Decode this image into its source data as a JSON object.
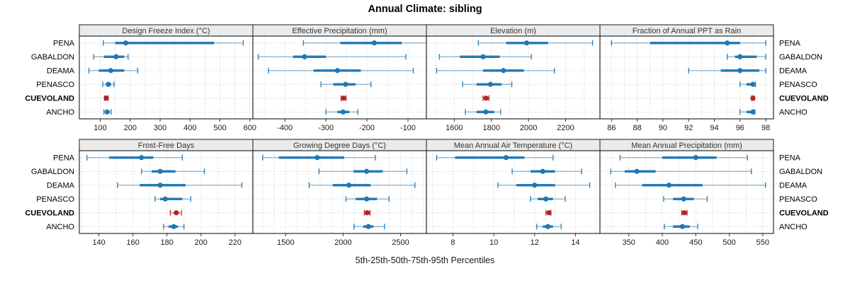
{
  "title": "Annual Climate: sibling",
  "footer_label": "5th-25th-50th-75th-95th Percentiles",
  "chart_data": {
    "type": "percentile-dot-whisker",
    "title": "Annual Climate: sibling",
    "xlabel": "5th-25th-50th-75th-95th Percentiles",
    "percentiles": [
      5,
      25,
      50,
      75,
      95
    ],
    "legend_position": "none",
    "grid": "dotted",
    "sites": [
      {
        "name": "PENA",
        "highlight": false
      },
      {
        "name": "GABALDON",
        "highlight": false
      },
      {
        "name": "DEAMA",
        "highlight": false
      },
      {
        "name": "PENASCO",
        "highlight": false
      },
      {
        "name": "CUEVOLAND",
        "highlight": true
      },
      {
        "name": "ANCHO",
        "highlight": false
      }
    ],
    "panels": [
      {
        "title": "Design Freeze Index (°C)",
        "xlim": [
          30,
          610
        ],
        "ticks": [
          100,
          200,
          300,
          400,
          500,
          600
        ],
        "minor": 50,
        "values": [
          [
            110,
            150,
            185,
            480,
            578
          ],
          [
            78,
            112,
            153,
            180,
            193
          ],
          [
            62,
            95,
            135,
            180,
            225
          ],
          [
            108,
            118,
            127,
            136,
            146
          ],
          [
            114,
            117,
            120,
            123,
            126
          ],
          [
            112,
            118,
            123,
            129,
            136
          ]
        ]
      },
      {
        "title": "Effective Precipitation (mm)",
        "xlim": [
          -478,
          -55
        ],
        "ticks": [
          -400,
          -300,
          -200,
          -100
        ],
        "minor": 50,
        "values": [
          [
            -355,
            -265,
            -182,
            -115,
            -35
          ],
          [
            -465,
            -380,
            -352,
            -300,
            -105
          ],
          [
            -440,
            -330,
            -272,
            -215,
            -87
          ],
          [
            -312,
            -282,
            -252,
            -228,
            -190
          ],
          [
            -263,
            -260,
            -257,
            -254,
            -251
          ],
          [
            -300,
            -272,
            -258,
            -243,
            -222
          ]
        ]
      },
      {
        "title": "Elevation (m)",
        "xlim": [
          1450,
          2385
        ],
        "ticks": [
          1600,
          1800,
          2000,
          2200
        ],
        "minor": 100,
        "values": [
          [
            1730,
            1880,
            1990,
            2105,
            2345
          ],
          [
            1520,
            1630,
            1755,
            1845,
            2015
          ],
          [
            1505,
            1755,
            1865,
            1975,
            2140
          ],
          [
            1645,
            1720,
            1795,
            1855,
            1910
          ],
          [
            1755,
            1763,
            1771,
            1779,
            1787
          ],
          [
            1660,
            1720,
            1770,
            1815,
            1850
          ]
        ]
      },
      {
        "title": "Fraction of Annual PPT as Rain",
        "xlim": [
          85.1,
          98.6
        ],
        "ticks": [
          86,
          88,
          90,
          92,
          94,
          96,
          98
        ],
        "minor": 1,
        "values": [
          [
            86,
            89,
            95,
            96,
            98
          ],
          [
            95,
            95.6,
            96,
            97.3,
            98
          ],
          [
            92,
            94.5,
            96,
            97.5,
            98
          ],
          [
            96,
            96.5,
            97,
            97.1,
            97.2
          ],
          [
            96.9,
            96.95,
            97,
            97.05,
            97.1
          ],
          [
            96,
            96.5,
            97,
            97.05,
            97.15
          ]
        ]
      },
      {
        "title": "Frost-Free Days",
        "xlim": [
          128.5,
          230.5
        ],
        "ticks": [
          140,
          160,
          180,
          200,
          220
        ],
        "minor": 10,
        "values": [
          [
            133,
            146,
            165,
            172,
            189
          ],
          [
            165,
            171,
            176,
            185,
            202
          ],
          [
            151,
            164,
            176,
            191,
            224
          ],
          [
            173,
            176,
            179,
            189,
            194
          ],
          [
            182,
            184,
            185.5,
            187,
            188.5
          ],
          [
            178,
            181,
            184,
            186.5,
            190
          ]
        ]
      },
      {
        "title": "Growing Degree Days (°C)",
        "xlim": [
          1215,
          2725
        ],
        "ticks": [
          1500,
          2000,
          2500
        ],
        "minor": 100,
        "values": [
          [
            1300,
            1440,
            1775,
            2010,
            2280
          ],
          [
            1790,
            2090,
            2205,
            2345,
            2555
          ],
          [
            1705,
            1910,
            2050,
            2240,
            2625
          ],
          [
            2025,
            2110,
            2205,
            2295,
            2400
          ],
          [
            2185,
            2198,
            2210,
            2222,
            2235
          ],
          [
            2095,
            2175,
            2220,
            2265,
            2360
          ]
        ]
      },
      {
        "title": "Mean Annual Air Temperature (°C)",
        "xlim": [
          6.7,
          15.2
        ],
        "ticks": [
          8,
          10,
          12,
          14
        ],
        "minor": 1,
        "values": [
          [
            7.2,
            8.1,
            10.6,
            11.5,
            12.9
          ],
          [
            10.9,
            11.8,
            12.4,
            13,
            14.3
          ],
          [
            10.2,
            11.1,
            12,
            13,
            14.7
          ],
          [
            11.8,
            12.15,
            12.55,
            12.9,
            13.5
          ],
          [
            12.55,
            12.6,
            12.7,
            12.75,
            12.8
          ],
          [
            12.1,
            12.4,
            12.65,
            12.9,
            13.3
          ]
        ]
      },
      {
        "title": "Mean Annual Precipitation (mm)",
        "xlim": [
          307,
          566
        ],
        "ticks": [
          350,
          400,
          450,
          500,
          550
        ],
        "minor": 25,
        "values": [
          [
            337,
            400,
            450,
            481,
            527
          ],
          [
            323,
            344,
            362,
            390,
            533
          ],
          [
            330,
            370,
            410,
            460,
            554
          ],
          [
            402,
            416,
            432,
            447,
            467
          ],
          [
            429,
            431,
            433,
            435,
            437
          ],
          [
            403,
            416,
            430,
            441,
            453
          ]
        ]
      }
    ],
    "colors": {
      "series": "#1f77b4",
      "series_light": "#a8cce4",
      "highlight": "#b22222",
      "grid": "#c9c9c9",
      "header_bg": "#ebebeb",
      "border": "#1a1a1a",
      "text": "#1a1a1a",
      "panel_title": "#333333"
    }
  }
}
